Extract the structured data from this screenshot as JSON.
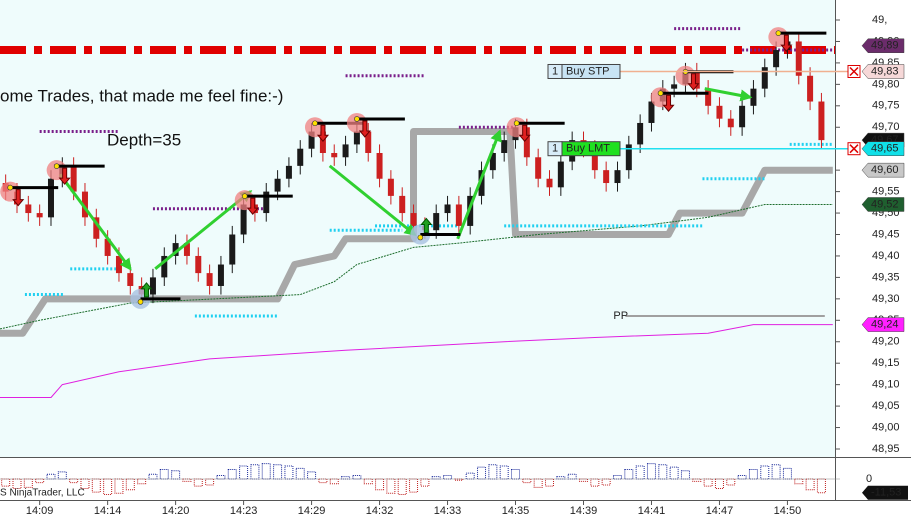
{
  "chart_data": {
    "type": "candlestick",
    "annotations": [
      "ome Trades, that made me feel fine:-)",
      "Depth=35"
    ],
    "copyright": "S NinjaTrader, LLC",
    "categories": [
      null,
      null,
      null,
      "14:09",
      null,
      null,
      null,
      null,
      null,
      "14:14",
      null,
      null,
      null,
      null,
      null,
      "14:20",
      null,
      null,
      null,
      null,
      null,
      "14:23",
      null,
      null,
      null,
      null,
      null,
      "14:29",
      null,
      null,
      null,
      null,
      null,
      "14:32",
      null,
      null,
      null,
      null,
      null,
      "14:33",
      null,
      null,
      null,
      null,
      null,
      "14:35",
      null,
      null,
      null,
      null,
      null,
      "14:39",
      null,
      null,
      null,
      null,
      null,
      "14:41",
      null,
      null,
      null,
      null,
      null,
      "14:47",
      null,
      null,
      null,
      null,
      null,
      "14:50",
      null,
      null,
      null
    ],
    "open": [
      49.57,
      49.55,
      49.52,
      49.5,
      49.49,
      49.58,
      49.61,
      49.55,
      49.49,
      49.44,
      49.4,
      49.36,
      49.33,
      49.31,
      49.35,
      49.4,
      49.43,
      49.4,
      49.36,
      49.33,
      49.38,
      49.45,
      49.52,
      49.5,
      49.55,
      49.58,
      49.61,
      49.65,
      49.69,
      49.64,
      49.63,
      49.66,
      49.69,
      49.64,
      49.58,
      49.54,
      49.5,
      49.47,
      49.46,
      49.5,
      49.52,
      49.47,
      49.54,
      49.6,
      49.64,
      49.67,
      49.7,
      49.63,
      49.58,
      49.56,
      49.62,
      49.67,
      49.65,
      49.6,
      49.57,
      49.6,
      49.66,
      49.71,
      49.76,
      49.79,
      49.8,
      49.83,
      49.79,
      49.75,
      49.72,
      49.7,
      49.75,
      49.79,
      49.84,
      49.88,
      49.9,
      49.82,
      49.76
    ],
    "high": [
      49.59,
      49.57,
      49.54,
      49.52,
      49.6,
      49.63,
      49.63,
      49.57,
      49.51,
      49.46,
      49.42,
      49.38,
      49.35,
      49.37,
      49.42,
      49.45,
      49.45,
      49.42,
      49.38,
      49.4,
      49.47,
      49.54,
      49.54,
      49.57,
      49.6,
      49.63,
      49.67,
      49.71,
      49.71,
      49.66,
      49.68,
      49.71,
      49.71,
      49.66,
      49.6,
      49.56,
      49.52,
      49.49,
      49.52,
      49.54,
      49.54,
      49.56,
      49.62,
      49.66,
      49.69,
      49.72,
      49.72,
      49.65,
      49.6,
      49.64,
      49.69,
      49.69,
      49.67,
      49.62,
      49.62,
      49.68,
      49.73,
      49.78,
      49.81,
      49.82,
      49.85,
      49.85,
      49.81,
      49.77,
      49.74,
      49.77,
      49.81,
      49.86,
      49.9,
      49.92,
      49.92,
      49.84,
      49.78
    ],
    "low": [
      49.53,
      49.5,
      49.48,
      49.47,
      49.47,
      49.56,
      49.53,
      49.47,
      49.42,
      49.38,
      49.34,
      49.31,
      49.29,
      49.29,
      49.33,
      49.38,
      49.38,
      49.34,
      49.31,
      49.31,
      49.36,
      49.43,
      49.48,
      49.48,
      49.53,
      49.56,
      49.59,
      49.63,
      49.62,
      49.61,
      49.61,
      49.64,
      49.62,
      49.56,
      49.52,
      49.48,
      49.45,
      49.44,
      49.44,
      49.48,
      49.45,
      49.45,
      49.52,
      49.58,
      49.62,
      49.65,
      49.61,
      49.56,
      49.54,
      49.54,
      49.6,
      49.63,
      49.58,
      49.55,
      49.55,
      49.58,
      49.64,
      49.69,
      49.74,
      49.77,
      49.78,
      49.77,
      49.73,
      49.7,
      49.68,
      49.68,
      49.73,
      49.77,
      49.82,
      49.86,
      49.8,
      49.74,
      49.65
    ],
    "close": [
      49.55,
      49.52,
      49.5,
      49.49,
      49.58,
      49.61,
      49.55,
      49.49,
      49.44,
      49.4,
      49.36,
      49.33,
      49.31,
      49.35,
      49.4,
      49.43,
      49.4,
      49.36,
      49.33,
      49.38,
      49.45,
      49.52,
      49.5,
      49.55,
      49.58,
      49.61,
      49.65,
      49.69,
      49.64,
      49.63,
      49.66,
      49.69,
      49.64,
      49.58,
      49.54,
      49.5,
      49.47,
      49.46,
      49.5,
      49.52,
      49.47,
      49.54,
      49.6,
      49.64,
      49.67,
      49.7,
      49.63,
      49.58,
      49.56,
      49.62,
      49.67,
      49.65,
      49.6,
      49.57,
      49.6,
      49.66,
      49.71,
      49.76,
      49.79,
      49.8,
      49.83,
      49.79,
      49.75,
      49.72,
      49.7,
      49.75,
      49.79,
      49.84,
      49.88,
      49.9,
      49.82,
      49.76,
      49.67
    ],
    "up_color": "#1a1a1a",
    "down_color": "#cc2020",
    "ylim": [
      48.936,
      49.978
    ],
    "yticks": [
      {
        "value": 49.95,
        "label": "49,"
      },
      {
        "value": 49.9,
        "label": "49,90"
      },
      {
        "value": 49.85,
        "label": "49,85"
      },
      {
        "value": 49.8,
        "label": "49,80"
      },
      {
        "value": 49.75,
        "label": "49,75"
      },
      {
        "value": 49.7,
        "label": "49,70"
      },
      {
        "value": 49.65,
        "label": "49,65"
      },
      {
        "value": 49.6,
        "label": "49,60"
      },
      {
        "value": 49.55,
        "label": "49,55"
      },
      {
        "value": 49.5,
        "label": "49,50"
      },
      {
        "value": 49.45,
        "label": "49,45"
      },
      {
        "value": 49.4,
        "label": "49,40"
      },
      {
        "value": 49.35,
        "label": "49,35"
      },
      {
        "value": 49.3,
        "label": "49,30"
      },
      {
        "value": 49.25,
        "label": "49,25"
      },
      {
        "value": 49.2,
        "label": "49,20"
      },
      {
        "value": 49.15,
        "label": "49,15"
      },
      {
        "value": 49.1,
        "label": "49,10"
      },
      {
        "value": 49.05,
        "label": "49,05"
      },
      {
        "value": 49.0,
        "label": "49,00"
      },
      {
        "value": 48.95,
        "label": "48,95"
      }
    ],
    "lines": [
      {
        "color": "#a8a8a8",
        "width": 7,
        "dash": "",
        "x": [
          -0.5,
          1.5,
          3.5,
          24,
          25.5,
          29,
          30,
          36,
          36,
          44.5,
          45,
          58.5,
          59.5,
          65,
          66,
          67,
          73
        ],
        "values": [
          49.22,
          49.22,
          49.3,
          49.3,
          49.38,
          49.4,
          49.44,
          49.44,
          49.69,
          49.69,
          49.45,
          49.45,
          49.5,
          49.5,
          49.55,
          49.6,
          49.6
        ]
      },
      {
        "color": "#1e6e2e",
        "width": 1,
        "dash": "2,1",
        "x": [
          -0.5,
          3,
          11,
          26,
          29,
          31,
          36,
          40,
          47,
          56,
          62,
          67,
          73
        ],
        "values": [
          49.23,
          49.25,
          49.29,
          49.31,
          49.34,
          49.38,
          49.42,
          49.43,
          49.45,
          49.47,
          49.49,
          49.52,
          49.52
        ]
      },
      {
        "color": "#e020e0",
        "width": 1,
        "dash": "",
        "x": [
          -0.5,
          4,
          5,
          10,
          18,
          30,
          44,
          52,
          62,
          66,
          73
        ],
        "values": [
          49.07,
          49.07,
          49.1,
          49.13,
          49.16,
          49.18,
          49.2,
          49.21,
          49.22,
          49.24,
          49.24
        ]
      }
    ],
    "pivot": {
      "label": "PP",
      "color": "#a0a0a0",
      "x": [
        54.7,
        72.3
      ],
      "values": [
        49.26,
        49.26
      ]
    },
    "resistance": {
      "value": 49.88,
      "color": "#e00000"
    },
    "dotted_levels": [
      {
        "color": "#7a1f8a",
        "x": [
          3,
          10
        ],
        "value": 49.69
      },
      {
        "color": "#7a1f8a",
        "x": [
          13,
          23
        ],
        "value": 49.51
      },
      {
        "color": "#7a1f8a",
        "x": [
          30,
          37
        ],
        "value": 49.82
      },
      {
        "color": "#7a1f8a",
        "x": [
          40,
          45
        ],
        "value": 49.7
      },
      {
        "color": "#7a1f8a",
        "x": [
          59,
          65
        ],
        "value": 49.93
      },
      {
        "color": "#7a1f8a",
        "x": [
          65,
          73
        ],
        "value": 49.88
      },
      {
        "color": "#20d0f0",
        "x": [
          1.7,
          5.2
        ],
        "value": 49.31
      },
      {
        "color": "#20d0f0",
        "x": [
          5.7,
          10
        ],
        "value": 49.37
      },
      {
        "color": "#20d0f0",
        "x": [
          16.7,
          24
        ],
        "value": 49.26
      },
      {
        "color": "#20d0f0",
        "x": [
          28.6,
          35
        ],
        "value": 49.46
      },
      {
        "color": "#20d0f0",
        "x": [
          32.6,
          40
        ],
        "value": 49.47
      },
      {
        "color": "#20d0f0",
        "x": [
          44,
          61.5
        ],
        "value": 49.47
      },
      {
        "color": "#20d0f0",
        "x": [
          61.5,
          67
        ],
        "value": 49.58
      },
      {
        "color": "#20d0f0",
        "x": [
          69.2,
          73
        ],
        "value": 49.66
      }
    ],
    "trend_arrows": [
      {
        "x": [
          4.8,
          11
        ],
        "values": [
          49.59,
          49.37
        ]
      },
      {
        "x": [
          13.2,
          21.6
        ],
        "values": [
          49.37,
          49.55
        ]
      },
      {
        "x": [
          28.6,
          36.1
        ],
        "values": [
          49.61,
          49.45
        ]
      },
      {
        "x": [
          39.9,
          43.6
        ],
        "values": [
          49.44,
          49.69
        ]
      },
      {
        "x": [
          61.7,
          65.7
        ],
        "values": [
          49.79,
          49.77
        ]
      }
    ],
    "short_signals": {
      "x": [
        0.4,
        4.5,
        21.1,
        27.3,
        31,
        45.1,
        57.8,
        60,
        68.2
      ],
      "values": [
        49.55,
        49.6,
        49.53,
        49.7,
        49.71,
        49.7,
        49.77,
        49.82,
        49.91
      ]
    },
    "long_signals": {
      "x": [
        11.9,
        36.6
      ],
      "values": [
        49.3,
        49.45
      ]
    },
    "orders": [
      {
        "quantity": 1,
        "label": "Buy STP",
        "value": 49.83,
        "fill": "#c8e4f4",
        "line": "#f0b090"
      },
      {
        "quantity": 1,
        "label": "Buy LMT",
        "value": 49.65,
        "fill": "#20e020",
        "line": "#20e0f0"
      }
    ],
    "price_markers": [
      {
        "value": 49.89,
        "label": "49,89",
        "color": "#6b2c6b",
        "text_color": "#ffffff"
      },
      {
        "value": 49.83,
        "label": "49,83",
        "color": "#f6d8d8",
        "text_color": "#802020"
      },
      {
        "value": 49.67,
        "label": "49,67",
        "color": "#111111",
        "text_color": "#ffffff"
      },
      {
        "value": 49.65,
        "label": "49,65",
        "color": "#10e0e8",
        "text_color": "#ffffff"
      },
      {
        "value": 49.6,
        "label": "49,60",
        "color": "#c8c8c8",
        "text_color": "#202020"
      },
      {
        "value": 49.52,
        "label": "49,52",
        "color": "#1f5f2f",
        "text_color": "#ffffff"
      },
      {
        "value": 49.24,
        "label": "49,24",
        "color": "#ff20ff",
        "text_color": "#ffffff"
      }
    ],
    "oscillator": {
      "values": [
        -6,
        -8,
        -7,
        -3,
        4,
        6,
        -3,
        -8,
        -11,
        -13,
        -12,
        -9,
        -4,
        4,
        8,
        7,
        -2,
        -6,
        -5,
        3,
        8,
        11,
        12,
        13,
        12,
        11,
        9,
        6,
        -3,
        -4,
        2,
        3,
        -4,
        -9,
        -12,
        -13,
        -11,
        -6,
        2,
        3,
        -1,
        5,
        10,
        12,
        11,
        8,
        -3,
        -7,
        -6,
        2,
        4,
        -2,
        -6,
        -5,
        3,
        8,
        11,
        13,
        12,
        10,
        7,
        -2,
        -6,
        -8,
        -5,
        3,
        8,
        11,
        12,
        9,
        -4,
        -9,
        -11.53
      ],
      "up_color": "#1a2a9a",
      "down_color": "#c02020",
      "ylim": [
        -16,
        16
      ],
      "yticks": [
        0
      ],
      "marker": {
        "value": -11.53,
        "label": "-11,53",
        "color": "#111111"
      }
    }
  }
}
